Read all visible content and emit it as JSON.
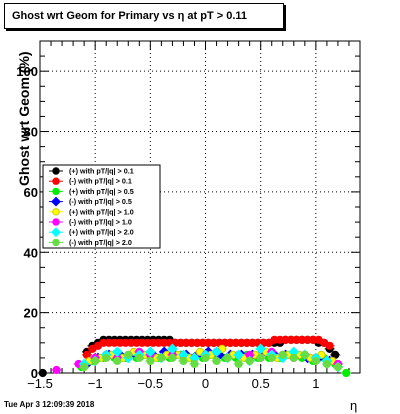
{
  "title": "Ghost wrt Geom for Primary vs   η at pT > 0.11",
  "timestamp": "Tue Apr  3 12:09:39 2018",
  "chart_data": {
    "type": "scatter",
    "title": "Ghost wrt Geom for Primary vs   η at pT > 0.11",
    "xlabel": "η",
    "ylabel": "Ghost wrt Geom (%)",
    "xlim": [
      -1.5,
      1.4
    ],
    "ylim": [
      0,
      110
    ],
    "x_ticks": [
      -1.5,
      -1,
      -0.5,
      0,
      0.5,
      1
    ],
    "x_tick_labels": [
      "−1.5",
      "−1",
      "−0.5",
      "0",
      "0.5",
      "1"
    ],
    "y_ticks": [
      0,
      20,
      40,
      60,
      80,
      100
    ],
    "y_tick_labels": [
      "0",
      "20",
      "40",
      "60",
      "80",
      "100"
    ],
    "grid": true,
    "legend_position": "left-middle",
    "series": [
      {
        "name": "(+) with pT/|q| > 0.1",
        "color": "#000000",
        "marker": "circle",
        "x": [
          -1.475,
          -1.075,
          -1.025,
          -0.975,
          -0.925,
          -0.875,
          -0.825,
          -0.775,
          -0.725,
          -0.675,
          -0.625,
          -0.575,
          -0.525,
          -0.475,
          -0.425,
          -0.375,
          -0.325,
          -0.275,
          -0.225,
          -0.175,
          -0.125,
          -0.075,
          -0.025,
          0.025,
          0.075,
          0.125,
          0.175,
          0.225,
          0.275,
          0.325,
          0.375,
          0.425,
          0.475,
          0.525,
          0.575,
          0.625,
          0.675,
          0.725,
          0.775,
          0.825,
          0.875,
          0.925,
          0.975,
          1.025,
          1.075,
          1.125,
          1.175
        ],
        "y": [
          0,
          7,
          9,
          10,
          11,
          11,
          11,
          11,
          11,
          11,
          11,
          11,
          11,
          11,
          11,
          11,
          11,
          10,
          10,
          10,
          10,
          10,
          10,
          10,
          10,
          10,
          10,
          10,
          10,
          10,
          10,
          10,
          10,
          10,
          10,
          10,
          10,
          11,
          11,
          11,
          11,
          11,
          11,
          10,
          10,
          8,
          6
        ]
      },
      {
        "name": "(-) with pT/|q| > 0.1",
        "color": "#ff0000",
        "marker": "circle",
        "x": [
          -1.075,
          -1.025,
          -0.975,
          -0.925,
          -0.875,
          -0.825,
          -0.775,
          -0.725,
          -0.675,
          -0.625,
          -0.575,
          -0.525,
          -0.475,
          -0.425,
          -0.375,
          -0.325,
          -0.275,
          -0.225,
          -0.175,
          -0.125,
          -0.075,
          -0.025,
          0.025,
          0.075,
          0.125,
          0.175,
          0.225,
          0.275,
          0.325,
          0.375,
          0.425,
          0.475,
          0.525,
          0.575,
          0.625,
          0.675,
          0.725,
          0.775,
          0.825,
          0.875,
          0.925,
          0.975,
          1.025,
          1.075,
          1.125
        ],
        "y": [
          6,
          8,
          9,
          10,
          10,
          10,
          10,
          10,
          10,
          10,
          10,
          10,
          10,
          10,
          10,
          10,
          10,
          10,
          10,
          10,
          10,
          10,
          10,
          10,
          10,
          10,
          10,
          10,
          10,
          10,
          10,
          10,
          10,
          10,
          11,
          11,
          11,
          11,
          11,
          11,
          11,
          11,
          11,
          10,
          9
        ]
      },
      {
        "name": "(+) with pT/|q| > 0.5",
        "color": "#00ee00",
        "marker": "circle",
        "x": [
          -1.125,
          -1.025,
          -0.925,
          -0.825,
          -0.725,
          -0.625,
          -0.525,
          -0.425,
          -0.325,
          -0.225,
          -0.125,
          -0.025,
          0.075,
          0.175,
          0.275,
          0.375,
          0.475,
          0.575,
          0.675,
          0.775,
          0.875,
          0.975,
          1.075,
          1.175,
          1.275
        ],
        "y": [
          2,
          4,
          5,
          5,
          5,
          5,
          6,
          5,
          5,
          6,
          5,
          5,
          6,
          5,
          5,
          6,
          5,
          5,
          5,
          6,
          5,
          4,
          5,
          3,
          0
        ]
      },
      {
        "name": "(-) with pT/|q| > 0.5",
        "color": "#0000ff",
        "marker": "diamond",
        "x": [
          -1.075,
          -0.975,
          -0.875,
          -0.775,
          -0.675,
          -0.575,
          -0.475,
          -0.375,
          -0.275,
          -0.175,
          -0.075,
          0.025,
          0.125,
          0.225,
          0.325,
          0.425,
          0.525,
          0.625,
          0.725,
          0.825,
          0.925,
          1.025,
          1.125
        ],
        "y": [
          3,
          5,
          6,
          6,
          6,
          6,
          6,
          7,
          6,
          6,
          6,
          7,
          6,
          6,
          6,
          6,
          7,
          6,
          6,
          6,
          5,
          5,
          4
        ]
      },
      {
        "name": "(+) with pT/|q| > 1.0",
        "color": "#ffff00",
        "marker": "circle",
        "x": [
          -1.05,
          -0.95,
          -0.85,
          -0.75,
          -0.65,
          -0.55,
          -0.45,
          -0.35,
          -0.25,
          -0.15,
          -0.05,
          0.05,
          0.15,
          0.25,
          0.35,
          0.45,
          0.55,
          0.65,
          0.75,
          0.85,
          0.95,
          1.05,
          1.15
        ],
        "y": [
          4,
          5,
          6,
          5,
          7,
          6,
          5,
          6,
          6,
          5,
          7,
          6,
          8,
          6,
          5,
          6,
          7,
          5,
          6,
          6,
          5,
          6,
          4
        ]
      },
      {
        "name": "(-) with pT/|q| > 1.0",
        "color": "#ff00ff",
        "marker": "circle",
        "x": [
          -1.35,
          -1.15,
          -1.0,
          -0.9,
          -0.8,
          -0.7,
          -0.6,
          -0.5,
          -0.4,
          -0.3,
          -0.2,
          -0.1,
          0.0,
          0.1,
          0.2,
          0.3,
          0.4,
          0.5,
          0.6,
          0.7,
          0.8,
          0.9,
          1.0,
          1.1,
          1.2
        ],
        "y": [
          1,
          3,
          5,
          6,
          5,
          6,
          7,
          6,
          5,
          6,
          6,
          5,
          6,
          7,
          5,
          6,
          6,
          5,
          7,
          6,
          5,
          6,
          5,
          4,
          3
        ]
      },
      {
        "name": "(+) with pT/|q| > 2.0",
        "color": "#00ffff",
        "marker": "diamond",
        "x": [
          -1.1,
          -1.0,
          -0.9,
          -0.8,
          -0.7,
          -0.6,
          -0.5,
          -0.4,
          -0.3,
          -0.2,
          -0.1,
          0.0,
          0.1,
          0.2,
          0.3,
          0.4,
          0.5,
          0.6,
          0.7,
          0.8,
          0.9,
          1.0,
          1.1,
          1.2
        ],
        "y": [
          3,
          4,
          6,
          7,
          5,
          6,
          7,
          5,
          8,
          6,
          5,
          6,
          7,
          5,
          6,
          4,
          8,
          6,
          5,
          7,
          6,
          5,
          4,
          2
        ]
      },
      {
        "name": "(-) with pT/|q| > 2.0",
        "color": "#66dd44",
        "marker": "circle",
        "x": [
          -1.1,
          -1.0,
          -0.9,
          -0.8,
          -0.7,
          -0.6,
          -0.5,
          -0.4,
          -0.3,
          -0.2,
          -0.1,
          0.0,
          0.1,
          0.2,
          0.3,
          0.4,
          0.5,
          0.6,
          0.7,
          0.8,
          0.9,
          1.0,
          1.1,
          1.2
        ],
        "y": [
          2,
          4,
          5,
          4,
          6,
          5,
          4,
          5,
          5,
          4,
          3,
          5,
          4,
          5,
          3,
          4,
          5,
          5,
          6,
          5,
          6,
          4,
          3,
          2
        ]
      }
    ]
  }
}
